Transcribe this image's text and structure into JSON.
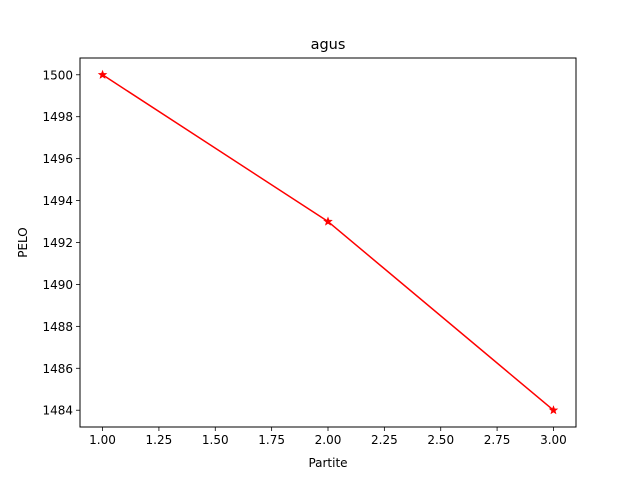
{
  "chart_data": {
    "type": "line",
    "title": "agus",
    "xlabel": "Partite",
    "ylabel": "PELO",
    "xlim": [
      0.9,
      3.1
    ],
    "ylim": [
      1483.2,
      1500.8
    ],
    "x_ticks": [
      1.0,
      1.25,
      1.5,
      1.75,
      2.0,
      2.25,
      2.5,
      2.75,
      3.0
    ],
    "x_tick_labels": [
      "1.00",
      "1.25",
      "1.50",
      "1.75",
      "2.00",
      "2.25",
      "2.50",
      "2.75",
      "3.00"
    ],
    "y_ticks": [
      1484,
      1486,
      1488,
      1490,
      1492,
      1494,
      1496,
      1498,
      1500
    ],
    "y_tick_labels": [
      "1484",
      "1486",
      "1488",
      "1490",
      "1492",
      "1494",
      "1496",
      "1498",
      "1500"
    ],
    "grid": false,
    "series": [
      {
        "x": [
          1,
          2,
          3
        ],
        "values": [
          1500,
          1493,
          1484
        ],
        "color": "#ff0000",
        "marker": "star"
      }
    ]
  }
}
